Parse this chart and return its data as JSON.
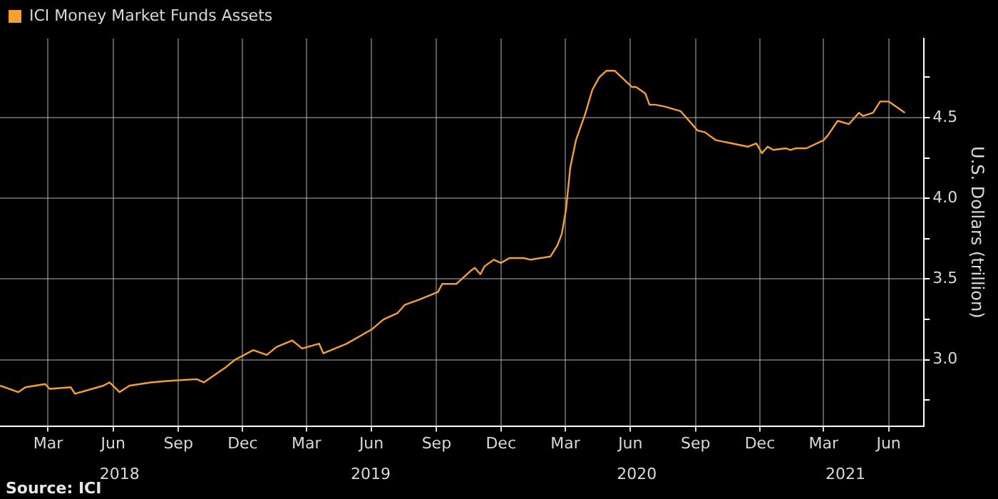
{
  "chart_data": {
    "type": "line",
    "ylabel": "U.S. Dollars (trillion)",
    "annotations": [
      "Source: ICI"
    ],
    "xlim": [
      "2018-01-06",
      "2021-08-04"
    ],
    "xticks": [
      {
        "value": "2018-03-15",
        "label": "Mar"
      },
      {
        "value": "2018-06-15",
        "label": "Jun"
      },
      {
        "value": "2018-09-15",
        "label": "Sep"
      },
      {
        "value": "2018-12-15",
        "label": "Dec"
      },
      {
        "value": "2019-03-15",
        "label": "Mar"
      },
      {
        "value": "2019-06-15",
        "label": "Jun"
      },
      {
        "value": "2019-09-15",
        "label": "Sep"
      },
      {
        "value": "2019-12-15",
        "label": "Dec"
      },
      {
        "value": "2020-03-15",
        "label": "Mar"
      },
      {
        "value": "2020-06-15",
        "label": "Jun"
      },
      {
        "value": "2020-09-15",
        "label": "Sep"
      },
      {
        "value": "2020-12-15",
        "label": "Dec"
      },
      {
        "value": "2021-03-15",
        "label": "Mar"
      },
      {
        "value": "2021-06-15",
        "label": "Jun"
      }
    ],
    "x2lim": [
      "2018-01-06",
      "2021-08-04"
    ],
    "x2ticks": [
      {
        "value": "2018-06-24",
        "label": "2018"
      },
      {
        "value": "2019-06-14",
        "label": "2019"
      },
      {
        "value": "2020-06-24",
        "label": "2020"
      },
      {
        "value": "2021-04-15",
        "label": "2021"
      }
    ],
    "ylim": [
      2.59,
      4.99
    ],
    "yticks": [
      {
        "value": 2.75,
        "label": null
      },
      {
        "value": 3,
        "label": "3.0"
      },
      {
        "value": 3.25,
        "label": null
      },
      {
        "value": 3.5,
        "label": "3.5"
      },
      {
        "value": 3.75,
        "label": null
      },
      {
        "value": 4,
        "label": "4.0"
      },
      {
        "value": 4.25,
        "label": null
      },
      {
        "value": 4.5,
        "label": "4.5"
      },
      {
        "value": 4.75,
        "label": null
      }
    ],
    "grid": true,
    "legend": "top left",
    "marker": "none",
    "line_style": "solid",
    "series": [
      {
        "name": "ICI Money Market Funds Assets",
        "color": "#f5a030",
        "x": [
          "2018-01-06",
          "2018-02-01",
          "2018-02-11",
          "2018-03-11",
          "2018-03-17",
          "2018-04-16",
          "2018-04-22",
          "2018-06-01",
          "2018-06-10",
          "2018-06-24",
          "2018-07-08",
          "2018-08-07",
          "2018-09-02",
          "2018-10-11",
          "2018-10-21",
          "2018-11-20",
          "2018-12-04",
          "2018-12-30",
          "2019-01-18",
          "2019-02-01",
          "2019-02-23",
          "2019-03-09",
          "2019-04-02",
          "2019-04-08",
          "2019-05-11",
          "2019-06-16",
          "2019-07-02",
          "2019-07-22",
          "2019-08-01",
          "2019-08-20",
          "2019-09-17",
          "2019-09-23",
          "2019-10-13",
          "2019-11-02",
          "2019-11-08",
          "2019-11-16",
          "2019-11-22",
          "2019-12-05",
          "2019-12-15",
          "2019-12-27",
          "2020-01-16",
          "2020-01-26",
          "2020-02-09",
          "2020-02-23",
          "2020-03-04",
          "2020-03-10",
          "2020-03-16",
          "2020-03-22",
          "2020-03-30",
          "2020-04-12",
          "2020-04-22",
          "2020-05-02",
          "2020-05-12",
          "2020-05-24",
          "2020-06-17",
          "2020-06-23",
          "2020-07-06",
          "2020-07-12",
          "2020-07-20",
          "2020-08-01",
          "2020-08-25",
          "2020-09-18",
          "2020-09-28",
          "2020-10-14",
          "2020-11-06",
          "2020-11-28",
          "2020-12-10",
          "2020-12-18",
          "2020-12-26",
          "2021-01-03",
          "2021-01-21",
          "2021-01-27",
          "2021-02-04",
          "2021-02-19",
          "2021-03-15",
          "2021-03-21",
          "2021-04-04",
          "2021-04-20",
          "2021-05-04",
          "2021-05-10",
          "2021-05-24",
          "2021-06-03",
          "2021-06-15",
          "2021-07-08"
        ],
        "values": [
          2.84,
          2.8,
          2.83,
          2.85,
          2.82,
          2.83,
          2.79,
          2.84,
          2.86,
          2.8,
          2.84,
          2.86,
          2.87,
          2.88,
          2.86,
          2.95,
          3.0,
          3.06,
          3.03,
          3.08,
          3.12,
          3.07,
          3.1,
          3.04,
          3.1,
          3.19,
          3.25,
          3.29,
          3.34,
          3.37,
          3.42,
          3.47,
          3.47,
          3.55,
          3.57,
          3.53,
          3.58,
          3.62,
          3.6,
          3.63,
          3.63,
          3.62,
          3.63,
          3.64,
          3.71,
          3.78,
          3.93,
          4.19,
          4.36,
          4.52,
          4.67,
          4.75,
          4.79,
          4.79,
          4.69,
          4.69,
          4.65,
          4.58,
          4.58,
          4.57,
          4.54,
          4.42,
          4.41,
          4.36,
          4.34,
          4.32,
          4.34,
          4.28,
          4.32,
          4.3,
          4.31,
          4.3,
          4.31,
          4.31,
          4.36,
          4.39,
          4.48,
          4.46,
          4.53,
          4.51,
          4.53,
          4.6,
          4.6,
          4.53
        ]
      }
    ]
  }
}
